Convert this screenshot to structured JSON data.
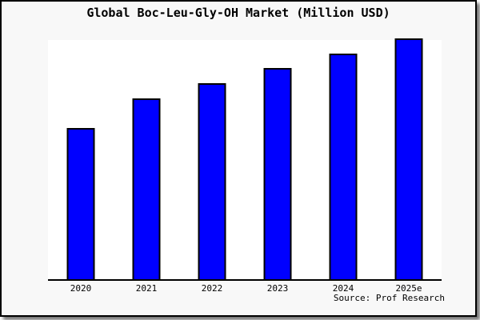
{
  "title": "Global Boc-Leu-Gly-OH Market (Million USD)",
  "source_credit": "Source: Prof Research",
  "colors": {
    "bar_fill": "#0000FF",
    "bar_border": "#000000",
    "panel_background": "#F8F8F8",
    "plot_background": "#FFFFFF",
    "panel_border": "#000000",
    "axis_line": "#000000"
  },
  "chart_data": {
    "type": "bar",
    "title": "Global Boc-Leu-Gly-OH Market (Million USD)",
    "categories": [
      "2020",
      "2021",
      "2022",
      "2023",
      "2024",
      "2025e"
    ],
    "values": [
      62.7,
      75.0,
      81.3,
      87.7,
      93.7,
      100.0
    ],
    "xlabel": "",
    "ylabel": "",
    "ylim": [
      0,
      100
    ],
    "value_note": "No y-axis ticks shown in chart; values are relative bar heights estimated from pixels with 2025e = 100",
    "grid": false,
    "legend_position": "none"
  }
}
